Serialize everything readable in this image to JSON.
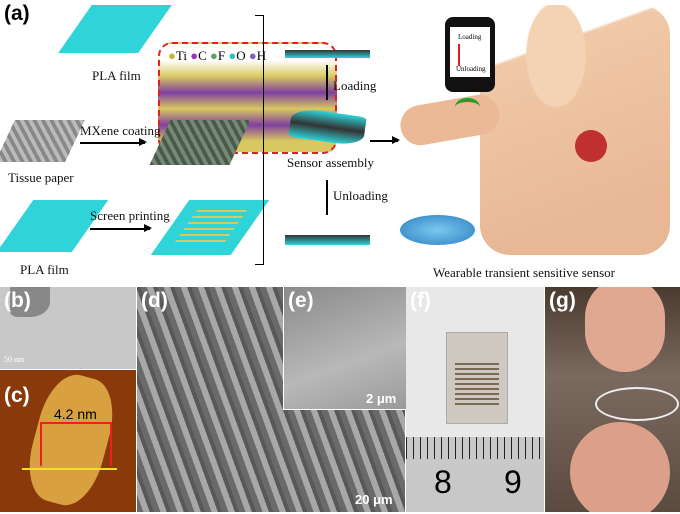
{
  "panel_a": {
    "label": "(a)",
    "pla_film_top": "PLA film",
    "pla_film_bottom": "PLA film",
    "tissue_paper": "Tissue paper",
    "mxene_coating": "MXene coating",
    "screen_printing": "Screen printing",
    "legend": [
      "Ti",
      "C",
      "F",
      "O",
      "H"
    ],
    "legend_colors": [
      "#c8b43c",
      "#a030c0",
      "#60a060",
      "#30c0c0",
      "#8060c0"
    ],
    "loading": "Loading",
    "unloading": "Unloading",
    "sensor_assembly": "Sensor assembly",
    "phone_loading": "Loading",
    "phone_unloading": "Unloading",
    "caption": "Wearable transient sensitive sensor"
  },
  "panel_b": {
    "label": "(b)",
    "scale": "50 nm"
  },
  "panel_c": {
    "label": "(c)",
    "height": "4.2 nm"
  },
  "panel_d": {
    "label": "(d)",
    "scale": "20 μm"
  },
  "panel_e": {
    "label": "(e)",
    "scale": "2 μm"
  },
  "panel_f": {
    "label": "(f)",
    "ruler": [
      "8",
      "9"
    ]
  },
  "panel_g": {
    "label": "(g)"
  }
}
